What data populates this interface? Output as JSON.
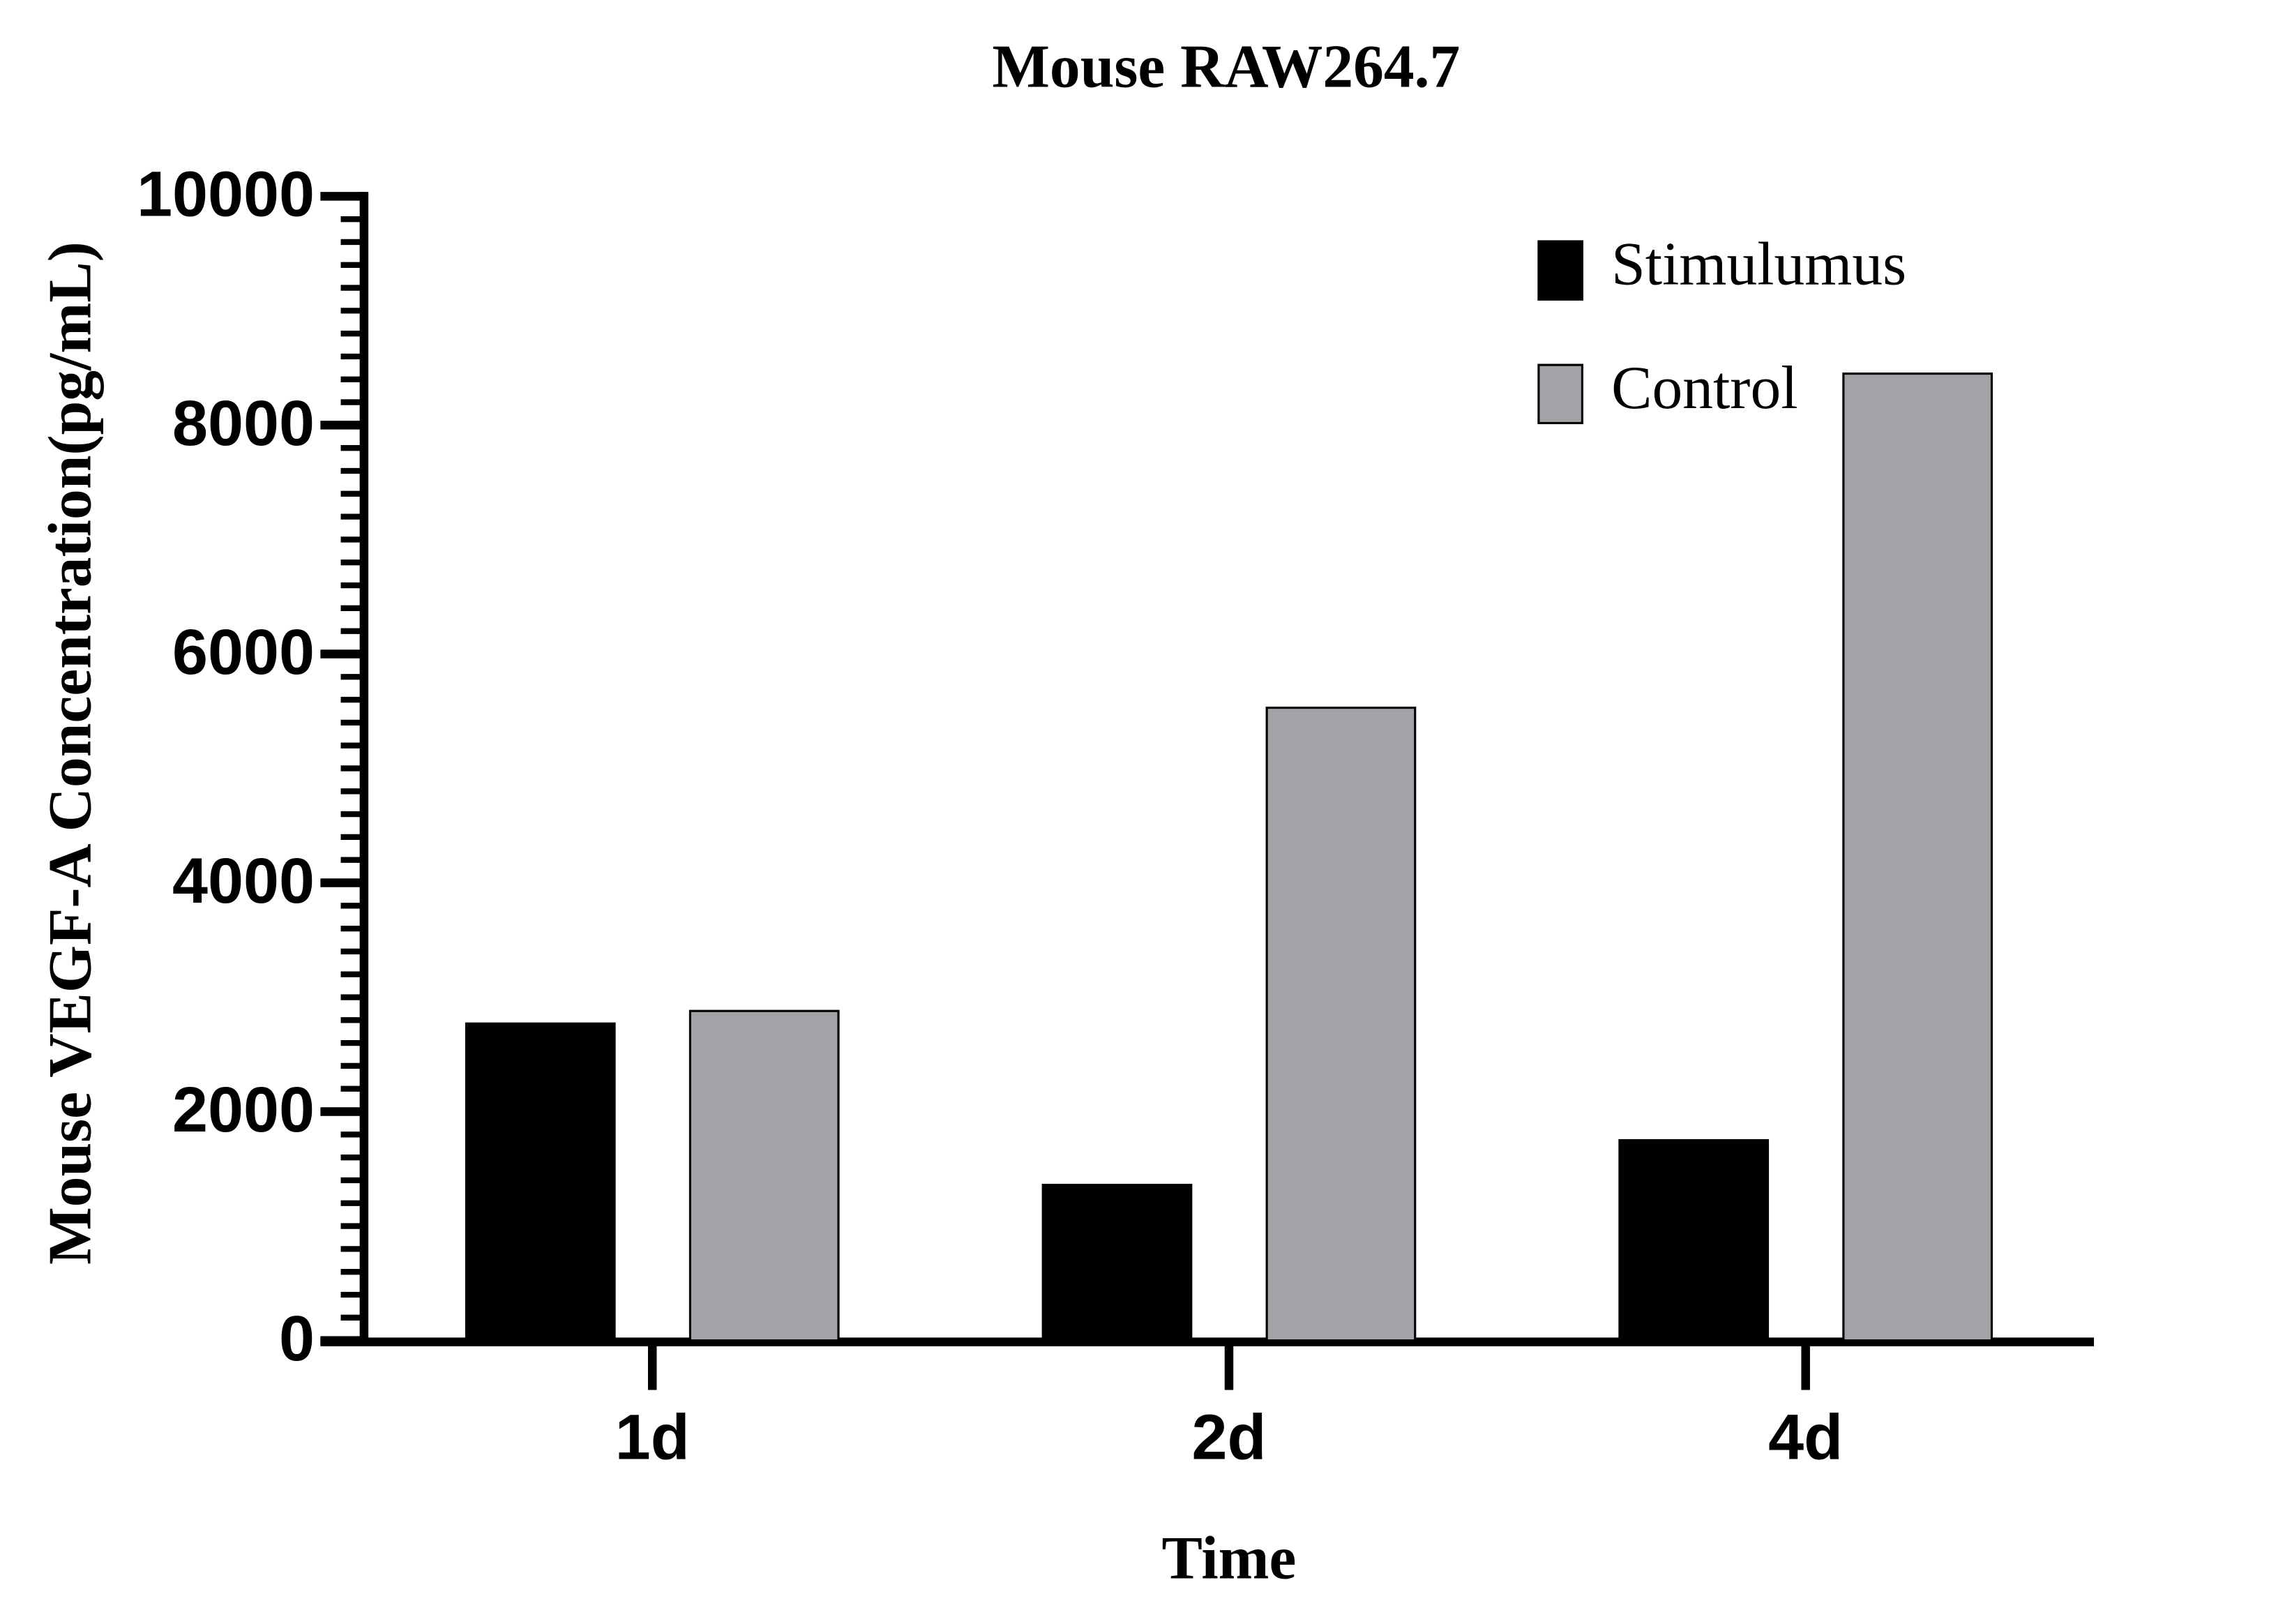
{
  "chart_data": {
    "type": "bar",
    "title": "Mouse RAW264.7",
    "x_label": "Time",
    "y_label": "Mouse VEGF-A Concentration(pg/mL)",
    "categories": [
      "1d",
      "2d",
      "4d"
    ],
    "series": [
      {
        "name": "Stimulumus",
        "color": "#000000",
        "values": [
          2770,
          1360,
          1750
        ]
      },
      {
        "name": "Control",
        "color": "#a3a3a7",
        "values": [
          2880,
          5530,
          8450
        ]
      }
    ],
    "ylim": [
      0,
      10000
    ],
    "yticks": [
      0,
      2000,
      4000,
      6000,
      8000,
      10000
    ],
    "grid": false,
    "legend": "upper right"
  }
}
